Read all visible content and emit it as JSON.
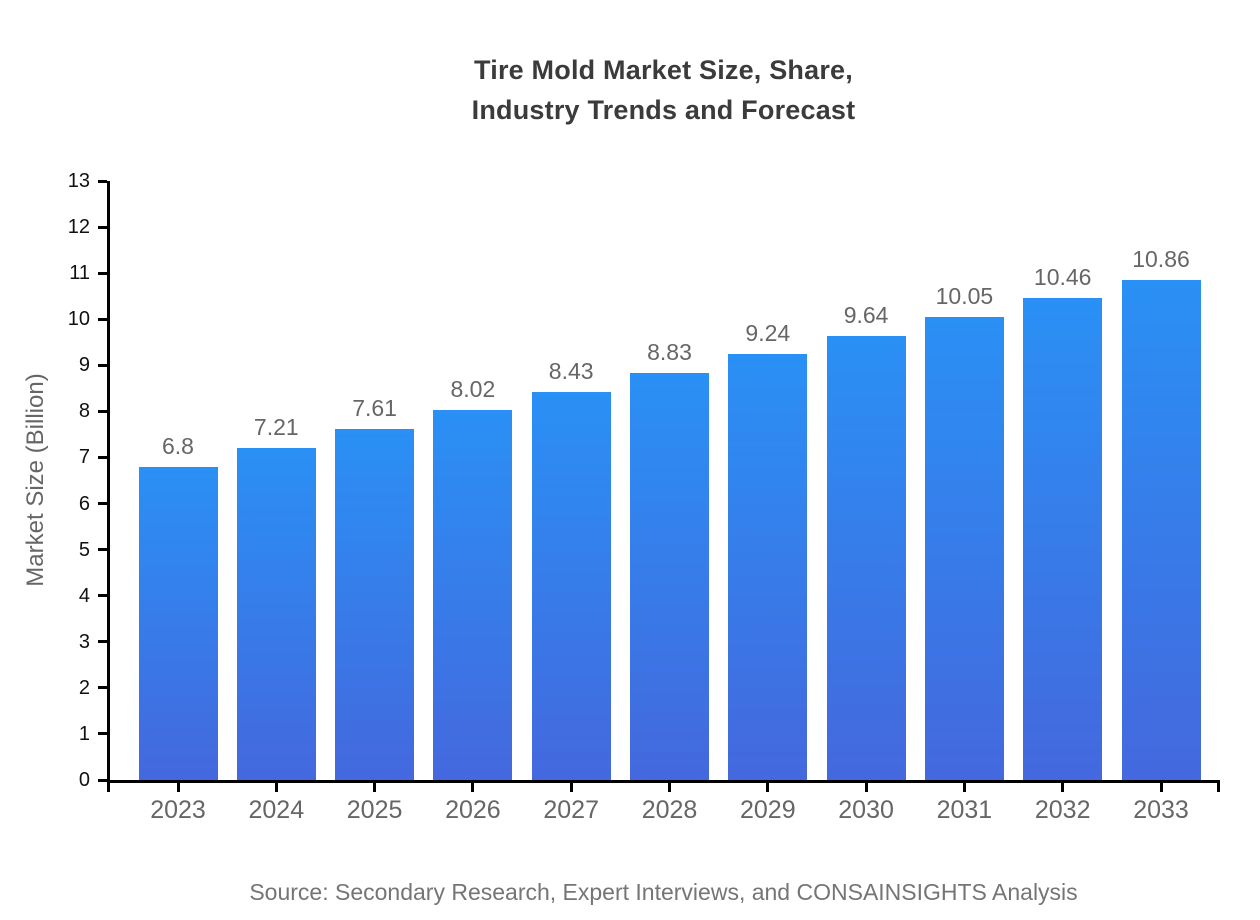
{
  "title": {
    "line1": "Tire Mold Market Size, Share,",
    "line2": "Industry Trends and Forecast"
  },
  "chart_data": {
    "type": "bar",
    "title": "Tire Mold Market Size, Share, Industry Trends and Forecast",
    "categories": [
      "2023",
      "2024",
      "2025",
      "2026",
      "2027",
      "2028",
      "2029",
      "2030",
      "2031",
      "2032",
      "2033"
    ],
    "values": [
      6.8,
      7.21,
      7.61,
      8.02,
      8.43,
      8.83,
      9.24,
      9.64,
      10.05,
      10.46,
      10.86
    ],
    "value_labels": [
      "6.8",
      "7.21",
      "7.61",
      "8.02",
      "8.43",
      "8.83",
      "9.24",
      "9.64",
      "10.05",
      "10.46",
      "10.86"
    ],
    "xlabel": "",
    "ylabel": "Market Size (Billion)",
    "ylim": [
      0,
      13
    ],
    "ytick_interval": 1,
    "grid": false,
    "legend": "none",
    "bar_gradient_top": "#2a90f5",
    "bar_gradient_bottom": "#4468dd"
  },
  "source": {
    "text": "Source: Secondary Research, Expert Interviews, and CONSAINSIGHTS Analysis"
  },
  "colors": {
    "background": "#ffffff",
    "title": "#3b3b3b",
    "axis": "#000000",
    "y_tick_label": "#111111",
    "x_tick_label": "#666666",
    "value_label": "#666666",
    "y_axis_title": "#666666",
    "source_text": "#757575",
    "bar_top": "#2a90f5",
    "bar_bottom": "#4468dd"
  }
}
